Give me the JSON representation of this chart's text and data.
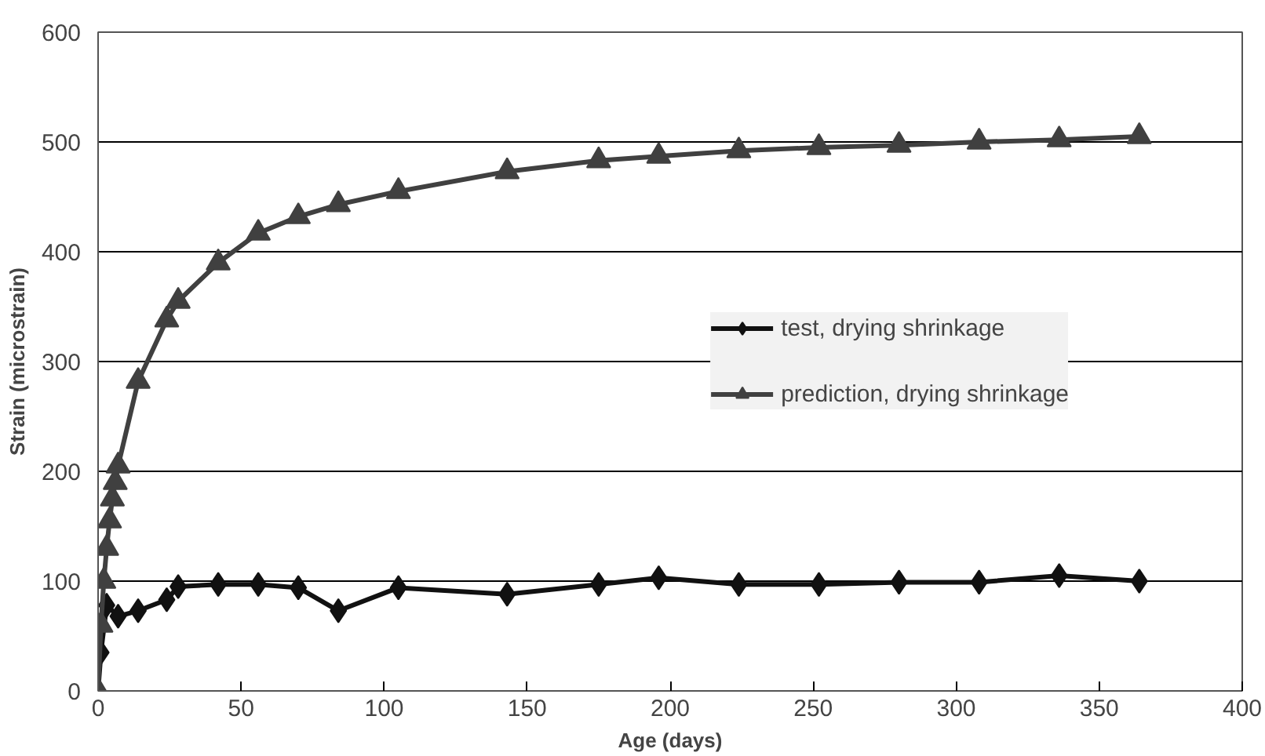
{
  "chart_data": {
    "type": "line",
    "xlabel": "Age (days)",
    "ylabel": "Strain (microstrain)",
    "xlim": [
      0,
      400
    ],
    "ylim": [
      0,
      600
    ],
    "xticks": [
      0,
      50,
      100,
      150,
      200,
      250,
      300,
      350,
      400
    ],
    "yticks": [
      0,
      100,
      200,
      300,
      400,
      500,
      600
    ],
    "grid": "y",
    "legend": "center right",
    "series": [
      {
        "name": "test, drying shrinkage",
        "color": "#111111",
        "marker": "diamond",
        "x": [
          0,
          1,
          3,
          7,
          14,
          24,
          28,
          42,
          56,
          70,
          84,
          105,
          143,
          175,
          196,
          224,
          252,
          280,
          308,
          336,
          364
        ],
        "values": [
          0,
          35,
          78,
          68,
          73,
          83,
          95,
          97,
          97,
          94,
          73,
          94,
          88,
          97,
          103,
          97,
          97,
          99,
          99,
          105,
          100
        ]
      },
      {
        "name": "prediction, drying shrinkage",
        "color": "#404040",
        "marker": "triangle",
        "x": [
          0,
          1,
          2,
          3,
          4,
          5,
          6,
          7,
          14,
          24,
          28,
          42,
          56,
          70,
          84,
          105,
          143,
          175,
          196,
          224,
          252,
          280,
          308,
          336,
          364
        ],
        "values": [
          0,
          60,
          100,
          130,
          155,
          175,
          190,
          205,
          282,
          338,
          355,
          390,
          417,
          432,
          443,
          455,
          473,
          483,
          487,
          492,
          495,
          497,
          500,
          502,
          505
        ]
      }
    ]
  }
}
